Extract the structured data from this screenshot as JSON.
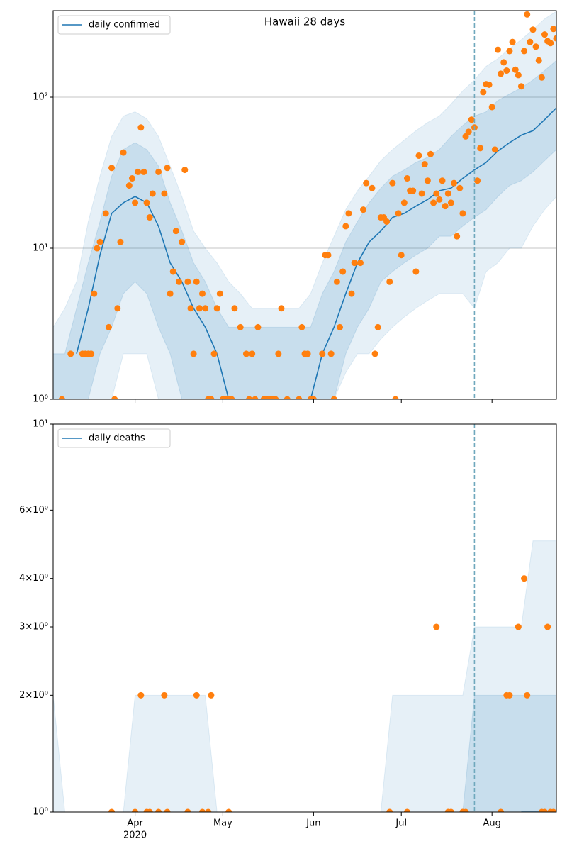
{
  "chart_data": [
    {
      "type": "line",
      "title": "Hawaii 28 days",
      "log": true,
      "grid": true,
      "legend": "upper left",
      "xlim": [
        64,
        236
      ],
      "xticks": [
        92,
        122,
        153,
        183,
        214
      ],
      "ylim": [
        1,
        374
      ],
      "yticks": [
        {
          "value": 1,
          "label": "10⁰"
        },
        {
          "value": 10,
          "label": "10¹"
        },
        {
          "value": 100,
          "label": "10²"
        }
      ],
      "x": [
        64,
        68,
        72,
        76,
        80,
        84,
        88,
        92,
        96,
        100,
        104,
        108,
        112,
        116,
        120,
        124,
        128,
        132,
        136,
        140,
        144,
        148,
        152,
        156,
        160,
        164,
        168,
        172,
        176,
        180,
        184,
        188,
        192,
        196,
        200,
        204,
        208,
        212,
        216,
        220,
        224,
        228,
        232,
        236
      ],
      "series": [
        {
          "name": "daily confirmed",
          "color": "#1f77b4",
          "values": [
            null,
            null,
            2,
            4,
            9,
            17,
            20,
            22,
            20,
            14,
            8,
            6,
            4,
            3,
            2,
            1,
            null,
            null,
            null,
            null,
            null,
            null,
            1,
            2,
            3,
            5,
            8,
            11,
            13,
            16,
            17,
            19,
            21,
            24,
            25,
            29,
            33,
            37,
            44,
            50,
            56,
            60,
            71,
            85
          ]
        }
      ],
      "bands": [
        {
          "color": "rgba(31,119,180,0.11)",
          "upper": [
            3,
            4,
            6,
            15,
            30,
            55,
            75,
            80,
            72,
            55,
            35,
            22,
            13,
            10,
            8,
            6,
            5,
            4,
            4,
            4,
            4,
            4,
            5,
            8,
            12,
            18,
            24,
            30,
            38,
            45,
            52,
            60,
            68,
            75,
            90,
            110,
            130,
            160,
            180,
            210,
            240,
            280,
            330,
            370
          ],
          "lower": [
            1,
            1,
            1,
            1,
            1,
            1,
            2,
            2,
            2,
            1,
            1,
            1,
            1,
            1,
            1,
            1,
            1,
            1,
            1,
            1,
            1,
            1,
            1,
            1,
            1,
            1.5,
            2,
            2,
            2.5,
            3,
            3.5,
            4,
            4.5,
            5,
            5,
            5,
            4,
            7,
            8,
            10,
            10,
            14,
            18,
            22
          ]
        },
        {
          "color": "rgba(31,119,180,0.15)",
          "upper": [
            2,
            2,
            4,
            8,
            15,
            30,
            45,
            50,
            45,
            35,
            20,
            13,
            8,
            6,
            4,
            3,
            3,
            3,
            3,
            3,
            3,
            3,
            3,
            5,
            7,
            11,
            15,
            20,
            25,
            30,
            33,
            37,
            40,
            45,
            55,
            65,
            75,
            80,
            95,
            105,
            115,
            130,
            150,
            175
          ],
          "lower": [
            1,
            1,
            1,
            1,
            2,
            3,
            5,
            6,
            5,
            3,
            2,
            1,
            1,
            1,
            1,
            1,
            1,
            1,
            1,
            1,
            1,
            1,
            1,
            1,
            1,
            2,
            3,
            4,
            6,
            7,
            8,
            9,
            10,
            12,
            12,
            14,
            16,
            18,
            22,
            26,
            28,
            32,
            38,
            45
          ]
        }
      ],
      "scatter": {
        "color": "#ff7f0e",
        "x": [
          67,
          70,
          74,
          75,
          76,
          77,
          78,
          79,
          80,
          82,
          83,
          84,
          85,
          86,
          87,
          88,
          90,
          91,
          92,
          93,
          94,
          95,
          96,
          97,
          98,
          100,
          102,
          103,
          104,
          105,
          106,
          107,
          108,
          109,
          110,
          111,
          112,
          113,
          114,
          115,
          116,
          117,
          118,
          119,
          120,
          121,
          122,
          123,
          124,
          125,
          126,
          128,
          130,
          131,
          132,
          133,
          134,
          136,
          137,
          138,
          139,
          140,
          141,
          142,
          144,
          148,
          149,
          150,
          151,
          152,
          153,
          156,
          157,
          158,
          159,
          160,
          161,
          162,
          163,
          164,
          165,
          166,
          167,
          169,
          170,
          171,
          173,
          174,
          175,
          176,
          177,
          178,
          179,
          180,
          181,
          182,
          183,
          184,
          185,
          186,
          187,
          188,
          189,
          190,
          191,
          192,
          193,
          194,
          195,
          196,
          197,
          198,
          199,
          200,
          201,
          202,
          203,
          204,
          205,
          206,
          207,
          208,
          209,
          210,
          211,
          212,
          213,
          214,
          215,
          216,
          217,
          218,
          219,
          220,
          221,
          222,
          223,
          224,
          225,
          226,
          227,
          228,
          229,
          230,
          231,
          232,
          233,
          234,
          235,
          236
        ],
        "values": [
          1,
          2,
          2,
          2,
          2,
          2,
          5,
          10,
          11,
          17,
          3,
          34,
          1,
          4,
          11,
          43,
          26,
          29,
          20,
          32,
          63,
          32,
          20,
          16,
          23,
          32,
          23,
          34,
          5,
          7,
          13,
          6,
          11,
          33,
          6,
          4,
          2,
          6,
          4,
          5,
          4,
          1,
          1,
          2,
          4,
          5,
          1,
          1,
          1,
          1,
          4,
          3,
          2,
          1,
          2,
          1,
          3,
          1,
          1,
          1,
          1,
          1,
          2,
          4,
          1,
          1,
          3,
          2,
          2,
          1,
          1,
          2,
          9,
          9,
          2,
          1,
          6,
          3,
          7,
          14,
          17,
          5,
          8,
          8,
          18,
          27,
          25,
          2,
          3,
          16,
          16,
          15,
          6,
          27,
          1,
          17,
          9,
          20,
          29,
          24,
          24,
          7,
          41,
          23,
          36,
          28,
          42,
          20,
          23,
          21,
          28,
          19,
          23,
          20,
          27,
          12,
          25,
          17,
          55,
          59,
          71,
          63,
          28,
          46,
          108,
          122,
          121,
          86,
          45,
          206,
          143,
          170,
          150,
          202,
          232,
          152,
          140,
          118,
          202,
          353,
          232,
          280,
          216,
          175,
          135,
          260,
          235,
          228,
          283,
          245
        ]
      },
      "vline": {
        "x": 208,
        "color": "#6fa8bd"
      }
    },
    {
      "type": "line",
      "log": true,
      "grid": false,
      "legend": "upper left",
      "xlim": [
        64,
        236
      ],
      "xticks": [
        {
          "value": 92,
          "label": "Apr"
        },
        {
          "value": 122,
          "label": "May"
        },
        {
          "value": 153,
          "label": "Jun"
        },
        {
          "value": 183,
          "label": "Jul"
        },
        {
          "value": 214,
          "label": "Aug"
        }
      ],
      "year": "2020",
      "ylim": [
        1,
        10
      ],
      "yticks": [
        {
          "value": 1,
          "label": "10⁰"
        },
        {
          "value": 2,
          "label": "2×10⁰"
        },
        {
          "value": 3,
          "label": "3×10⁰"
        },
        {
          "value": 4,
          "label": "4×10⁰"
        },
        {
          "value": 6,
          "label": "6×10⁰"
        },
        {
          "value": 10,
          "label": "10¹"
        }
      ],
      "x": [
        64,
        68,
        72,
        76,
        80,
        84,
        88,
        92,
        96,
        100,
        104,
        108,
        112,
        116,
        120,
        124,
        128,
        132,
        136,
        140,
        144,
        148,
        152,
        156,
        160,
        164,
        168,
        172,
        176,
        180,
        184,
        188,
        192,
        196,
        200,
        204,
        208,
        212,
        216,
        220,
        224,
        228,
        232,
        236
      ],
      "series": [
        {
          "name": "daily deaths",
          "color": "#1f77b4",
          "values": [
            null,
            null,
            null,
            null,
            null,
            null,
            null,
            null,
            null,
            null,
            null,
            null,
            null,
            null,
            null,
            null,
            null,
            null,
            null,
            null,
            null,
            null,
            null,
            null,
            null,
            null,
            null,
            null,
            null,
            null,
            null,
            null,
            null,
            null,
            null,
            null,
            null,
            null,
            null,
            null,
            1,
            1,
            1,
            1
          ]
        }
      ],
      "bands": [
        {
          "color": "rgba(31,119,180,0.11)",
          "upper": [
            2,
            1,
            1,
            1,
            1,
            1,
            1,
            2,
            2,
            2,
            2,
            2,
            2,
            2,
            1,
            1,
            1,
            1,
            1,
            1,
            1,
            1,
            1,
            1,
            1,
            1,
            1,
            1,
            1,
            2,
            2,
            2,
            2,
            2,
            2,
            2,
            3,
            3,
            3,
            3,
            3,
            5,
            5,
            5
          ],
          "lower": [
            1,
            1,
            1,
            1,
            1,
            1,
            1,
            1,
            1,
            1,
            1,
            1,
            1,
            1,
            1,
            1,
            1,
            1,
            1,
            1,
            1,
            1,
            1,
            1,
            1,
            1,
            1,
            1,
            1,
            1,
            1,
            1,
            1,
            1,
            1,
            1,
            1,
            1,
            1,
            1,
            1,
            1,
            1,
            1
          ]
        },
        {
          "color": "rgba(31,119,180,0.15)",
          "upper": [
            1,
            1,
            1,
            1,
            1,
            1,
            1,
            1,
            1,
            1,
            1,
            1,
            1,
            1,
            1,
            1,
            1,
            1,
            1,
            1,
            1,
            1,
            1,
            1,
            1,
            1,
            1,
            1,
            1,
            1,
            1,
            1,
            1,
            1,
            1,
            1,
            2,
            2,
            2,
            2,
            2,
            2,
            2,
            2
          ],
          "lower": [
            1,
            1,
            1,
            1,
            1,
            1,
            1,
            1,
            1,
            1,
            1,
            1,
            1,
            1,
            1,
            1,
            1,
            1,
            1,
            1,
            1,
            1,
            1,
            1,
            1,
            1,
            1,
            1,
            1,
            1,
            1,
            1,
            1,
            1,
            1,
            1,
            1,
            1,
            1,
            1,
            1,
            1,
            1,
            1
          ]
        }
      ],
      "scatter": {
        "color": "#ff7f0e",
        "x": [
          84,
          92,
          94,
          96,
          97,
          100,
          102,
          103,
          110,
          113,
          115,
          117,
          118,
          124,
          179,
          185,
          195,
          199,
          200,
          204,
          205,
          217,
          219,
          220,
          223,
          225,
          226,
          231,
          232,
          233,
          234,
          235
        ],
        "values": [
          1,
          1,
          2,
          1,
          1,
          1,
          2,
          1,
          1,
          2,
          1,
          1,
          2,
          1,
          1,
          1,
          3,
          1,
          1,
          1,
          1,
          1,
          2,
          2,
          3,
          4,
          2,
          1,
          1,
          3,
          1,
          1
        ]
      },
      "vline": {
        "x": 208,
        "color": "#6fa8bd"
      }
    }
  ]
}
